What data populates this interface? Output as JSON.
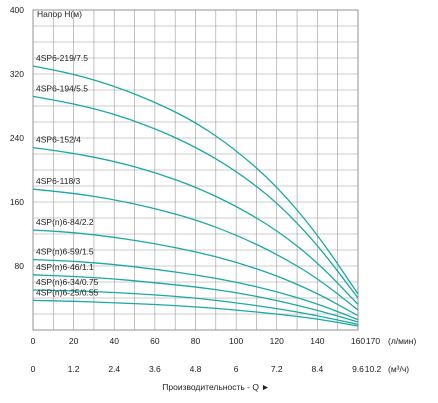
{
  "chart_data": {
    "type": "line",
    "ylabel": "Напор Н(м)",
    "xlabel": "Производительность - Q ►",
    "x_primary_unit": "(л/мин)",
    "x_secondary_unit": "(м³/ч)",
    "y_ticks": [
      "80",
      "160",
      "240",
      "320",
      "400"
    ],
    "x_ticks": [
      "0",
      "20",
      "40",
      "60",
      "80",
      "100",
      "120",
      "140",
      "160",
      "170"
    ],
    "x2_ticks": [
      "0",
      "1.2",
      "2.4",
      "3.6",
      "4.8",
      "6",
      "7.2",
      "8.4",
      "9.6",
      "10.2"
    ],
    "xlim": [
      0,
      170
    ],
    "ylim": [
      0,
      400
    ],
    "grid": true,
    "line_color": "#1aa9a4",
    "series": [
      {
        "name": "4SP6-219/7.5",
        "x": [
          0,
          20,
          40,
          60,
          80,
          100,
          120,
          140,
          160
        ],
        "y": [
          330,
          320,
          305,
          285,
          260,
          225,
          180,
          120,
          45
        ]
      },
      {
        "name": "4SP6-194/5.5",
        "x": [
          0,
          20,
          40,
          60,
          80,
          100,
          120,
          140,
          160
        ],
        "y": [
          292,
          283,
          270,
          252,
          229,
          199,
          160,
          107,
          40
        ]
      },
      {
        "name": "4SP6-152/4",
        "x": [
          0,
          20,
          40,
          60,
          80,
          100,
          120,
          140,
          160
        ],
        "y": [
          228,
          221,
          211,
          197,
          179,
          155,
          125,
          85,
          32
        ]
      },
      {
        "name": "4SP6-118/3",
        "x": [
          0,
          20,
          40,
          60,
          80,
          100,
          120,
          140,
          160
        ],
        "y": [
          176,
          171,
          163,
          152,
          138,
          119,
          95,
          65,
          25
        ]
      },
      {
        "name": "4SP(n)6-84/2.2",
        "x": [
          0,
          20,
          40,
          60,
          80,
          100,
          120,
          140,
          160
        ],
        "y": [
          125,
          122,
          116,
          108,
          98,
          85,
          68,
          46,
          18
        ]
      },
      {
        "name": "4SP(n)6-59/1.5",
        "x": [
          0,
          20,
          40,
          60,
          80,
          100,
          120,
          140,
          160
        ],
        "y": [
          88,
          86,
          82,
          76,
          69,
          60,
          48,
          33,
          13
        ]
      },
      {
        "name": "4SP(n)6-46/1.1",
        "x": [
          0,
          20,
          40,
          60,
          80,
          100,
          120,
          140,
          160
        ],
        "y": [
          69,
          67,
          64,
          59,
          54,
          47,
          37,
          25,
          10
        ]
      },
      {
        "name": "4SP(n)6-34/0.75",
        "x": [
          0,
          20,
          40,
          60,
          80,
          100,
          120,
          140,
          160
        ],
        "y": [
          50,
          49,
          47,
          44,
          40,
          34,
          27,
          18,
          7
        ]
      },
      {
        "name": "4SP(n)6-25/0.55",
        "x": [
          0,
          20,
          40,
          60,
          80,
          100,
          120,
          140,
          160
        ],
        "y": [
          37,
          36,
          34,
          32,
          29,
          25,
          20,
          14,
          5
        ]
      }
    ]
  }
}
